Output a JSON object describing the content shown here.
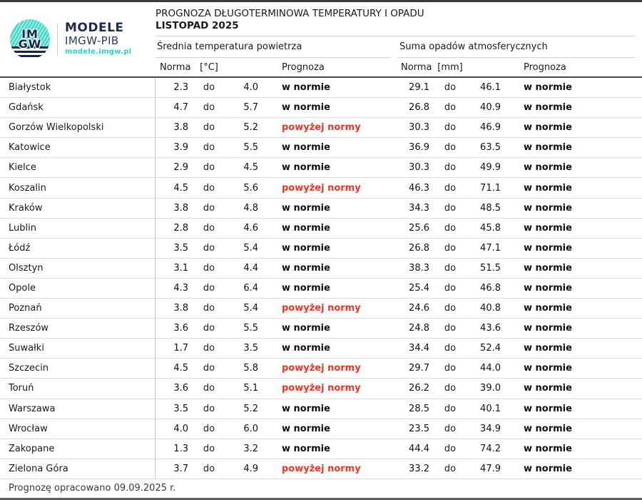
{
  "page": {
    "title_line1": "PROGNOZA DŁUGOTERMINOWA TEMPERATURY I OPADU",
    "title_line2": "LISTOPAD 2025",
    "footer": "Prognozę opracowano 09.09.2025 r."
  },
  "brand": {
    "logo_line1": "IM",
    "logo_line2": "GW",
    "name": "MODELE",
    "org": "IMGW-PIB",
    "url": "modele.imgw.pl"
  },
  "colors": {
    "accent_teal": "#2fd3c4",
    "brand_navy": "#1d2b50",
    "above_norm_red": "#ee3524",
    "normal_text": "#111111"
  },
  "table": {
    "do_label": "do",
    "sections": [
      {
        "label": "Średnia temperatura powietrza",
        "norma": "Norma",
        "unit": "[°C]",
        "prognoza": "Prognoza"
      },
      {
        "label": "Suma opadów atmosferycznych",
        "norma": "Norma",
        "unit": "[mm]",
        "prognoza": "Prognoza"
      }
    ],
    "forecast_labels": {
      "in_norm": "w normie",
      "above_norm": "powyżej normy"
    },
    "rows": [
      {
        "city": "Białystok",
        "t_low": "2.3",
        "t_high": "4.0",
        "t_forecast": "w normie",
        "t_above": false,
        "p_low": "29.1",
        "p_high": "46.1",
        "p_forecast": "w normie",
        "p_above": false
      },
      {
        "city": "Gdańsk",
        "t_low": "4.7",
        "t_high": "5.7",
        "t_forecast": "w normie",
        "t_above": false,
        "p_low": "26.8",
        "p_high": "40.9",
        "p_forecast": "w normie",
        "p_above": false
      },
      {
        "city": "Gorzów Wielkopolski",
        "t_low": "3.8",
        "t_high": "5.2",
        "t_forecast": "powyżej normy",
        "t_above": true,
        "p_low": "30.3",
        "p_high": "46.9",
        "p_forecast": "w normie",
        "p_above": false
      },
      {
        "city": "Katowice",
        "t_low": "3.9",
        "t_high": "5.5",
        "t_forecast": "w normie",
        "t_above": false,
        "p_low": "36.9",
        "p_high": "63.5",
        "p_forecast": "w normie",
        "p_above": false
      },
      {
        "city": "Kielce",
        "t_low": "2.9",
        "t_high": "4.5",
        "t_forecast": "w normie",
        "t_above": false,
        "p_low": "30.3",
        "p_high": "49.9",
        "p_forecast": "w normie",
        "p_above": false
      },
      {
        "city": "Koszalin",
        "t_low": "4.5",
        "t_high": "5.6",
        "t_forecast": "powyżej normy",
        "t_above": true,
        "p_low": "46.3",
        "p_high": "71.1",
        "p_forecast": "w normie",
        "p_above": false
      },
      {
        "city": "Kraków",
        "t_low": "3.8",
        "t_high": "4.8",
        "t_forecast": "w normie",
        "t_above": false,
        "p_low": "34.3",
        "p_high": "48.5",
        "p_forecast": "w normie",
        "p_above": false
      },
      {
        "city": "Lublin",
        "t_low": "2.8",
        "t_high": "4.6",
        "t_forecast": "w normie",
        "t_above": false,
        "p_low": "25.6",
        "p_high": "45.8",
        "p_forecast": "w normie",
        "p_above": false
      },
      {
        "city": "Łódź",
        "t_low": "3.5",
        "t_high": "5.4",
        "t_forecast": "w normie",
        "t_above": false,
        "p_low": "26.8",
        "p_high": "47.1",
        "p_forecast": "w normie",
        "p_above": false
      },
      {
        "city": "Olsztyn",
        "t_low": "3.1",
        "t_high": "4.4",
        "t_forecast": "w normie",
        "t_above": false,
        "p_low": "38.3",
        "p_high": "51.5",
        "p_forecast": "w normie",
        "p_above": false
      },
      {
        "city": "Opole",
        "t_low": "4.3",
        "t_high": "6.4",
        "t_forecast": "w normie",
        "t_above": false,
        "p_low": "25.4",
        "p_high": "46.8",
        "p_forecast": "w normie",
        "p_above": false
      },
      {
        "city": "Poznań",
        "t_low": "3.8",
        "t_high": "5.4",
        "t_forecast": "powyżej normy",
        "t_above": true,
        "p_low": "24.6",
        "p_high": "40.8",
        "p_forecast": "w normie",
        "p_above": false
      },
      {
        "city": "Rzeszów",
        "t_low": "3.6",
        "t_high": "5.5",
        "t_forecast": "w normie",
        "t_above": false,
        "p_low": "24.8",
        "p_high": "43.6",
        "p_forecast": "w normie",
        "p_above": false
      },
      {
        "city": "Suwałki",
        "t_low": "1.7",
        "t_high": "3.5",
        "t_forecast": "w normie",
        "t_above": false,
        "p_low": "34.4",
        "p_high": "52.4",
        "p_forecast": "w normie",
        "p_above": false
      },
      {
        "city": "Szczecin",
        "t_low": "4.5",
        "t_high": "5.8",
        "t_forecast": "powyżej normy",
        "t_above": true,
        "p_low": "29.7",
        "p_high": "44.0",
        "p_forecast": "w normie",
        "p_above": false
      },
      {
        "city": "Toruń",
        "t_low": "3.6",
        "t_high": "5.1",
        "t_forecast": "powyżej normy",
        "t_above": true,
        "p_low": "26.2",
        "p_high": "39.0",
        "p_forecast": "w normie",
        "p_above": false
      },
      {
        "city": "Warszawa",
        "t_low": "3.5",
        "t_high": "5.2",
        "t_forecast": "w normie",
        "t_above": false,
        "p_low": "28.5",
        "p_high": "40.1",
        "p_forecast": "w normie",
        "p_above": false
      },
      {
        "city": "Wrocław",
        "t_low": "4.0",
        "t_high": "6.0",
        "t_forecast": "w normie",
        "t_above": false,
        "p_low": "23.5",
        "p_high": "34.9",
        "p_forecast": "w normie",
        "p_above": false
      },
      {
        "city": "Zakopane",
        "t_low": "1.3",
        "t_high": "3.2",
        "t_forecast": "w normie",
        "t_above": false,
        "p_low": "44.4",
        "p_high": "74.2",
        "p_forecast": "w normie",
        "p_above": false
      },
      {
        "city": "Zielona Góra",
        "t_low": "3.7",
        "t_high": "4.9",
        "t_forecast": "powyżej normy",
        "t_above": true,
        "p_low": "33.2",
        "p_high": "47.9",
        "p_forecast": "w normie",
        "p_above": false
      }
    ]
  }
}
